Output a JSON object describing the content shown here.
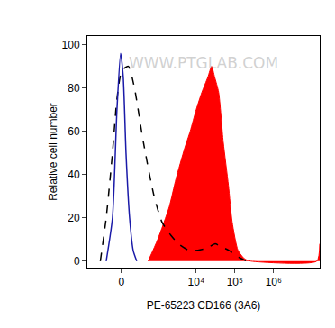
{
  "chart_data": {
    "type": "line",
    "x_label": "PE-65223 CD166 (3A6)",
    "y_label": "Relative cell number",
    "annotations": [
      "WWW.PTGLAB.COM"
    ],
    "xlim": [
      -880,
      15500000
    ],
    "xticks": [
      0,
      {
        "value": 10000,
        "label": "10⁴"
      },
      {
        "value": 100000,
        "label": "10⁵"
      },
      {
        "value": 1000000,
        "label": "10⁶"
      }
    ],
    "ylim": [
      -3,
      104
    ],
    "yticks": [
      0,
      20,
      40,
      60,
      80,
      100
    ],
    "grid": false,
    "series": [
      {
        "type": "area",
        "color": "#ff0000",
        "x": [
          550,
          1000,
          2000,
          3000,
          5000,
          7000,
          10000,
          14000,
          20000,
          25000,
          30000,
          38000,
          50000,
          68000,
          85000,
          120000,
          180000,
          260000,
          13000000,
          15500000
        ],
        "values": [
          0,
          10,
          25,
          38,
          52,
          60,
          70,
          78,
          85,
          90,
          85,
          78,
          55,
          35,
          18,
          5,
          1,
          0,
          0,
          8
        ]
      },
      {
        "type": "line",
        "color": "#000000",
        "line_style": "dashed",
        "x": [
          -380,
          -244,
          -132,
          -64,
          5,
          100,
          200,
          400,
          800,
          1300,
          2200,
          3500,
          6500,
          11000,
          19000,
          31000,
          40000,
          70000,
          120000,
          200000
        ],
        "values": [
          0,
          20,
          50,
          75,
          88,
          90,
          80,
          55,
          30,
          18,
          12,
          8,
          5,
          5,
          6,
          8,
          7,
          5,
          2,
          0
        ]
      },
      {
        "type": "line",
        "color": "#1a1aa8",
        "line_style": "solid",
        "x": [
          -244,
          -132,
          -64,
          -12,
          25,
          64,
          118,
          177,
          244
        ],
        "values": [
          0,
          20,
          70,
          96,
          85,
          50,
          20,
          5,
          0
        ]
      }
    ]
  }
}
